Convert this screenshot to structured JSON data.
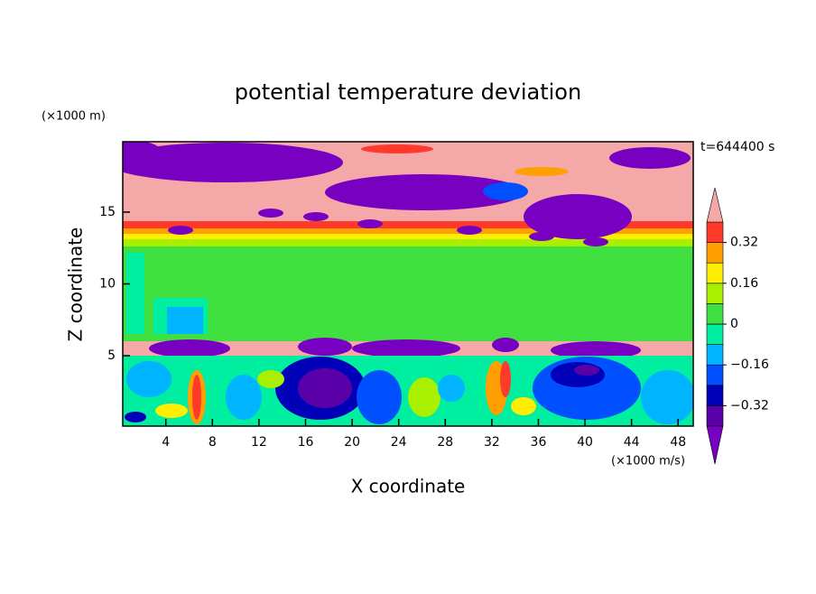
{
  "chart_data": {
    "type": "contour",
    "title": "potential temperature deviation",
    "x_label": "X coordinate",
    "y_label": "Z coordinate",
    "x_unit": "(×1000 m/s)",
    "y_unit": "(×1000 m)",
    "time_label": "t=644400 s",
    "xlim": [
      0.3,
      49.3
    ],
    "ylim": [
      0.1,
      19.9
    ],
    "xticks": [
      4,
      8,
      12,
      16,
      20,
      24,
      28,
      32,
      36,
      40,
      44,
      48
    ],
    "yticks": [
      5,
      10,
      15
    ],
    "colorbar": {
      "lim": [
        -0.4,
        0.4
      ],
      "ticks": [
        {
          "value": -0.32,
          "label": "−0.32"
        },
        {
          "value": -0.16,
          "label": "−0.16"
        },
        0,
        0.16,
        0.32
      ],
      "colors": [
        "#5a00a8",
        "#0000b8",
        "#0050ff",
        "#00b4ff",
        "#00eea0",
        "#40e040",
        "#a8f000",
        "#ffee00",
        "#ffa000",
        "#ff3a2a"
      ],
      "under_color": "#7800c0",
      "over_color": "#f4a8a8"
    }
  }
}
